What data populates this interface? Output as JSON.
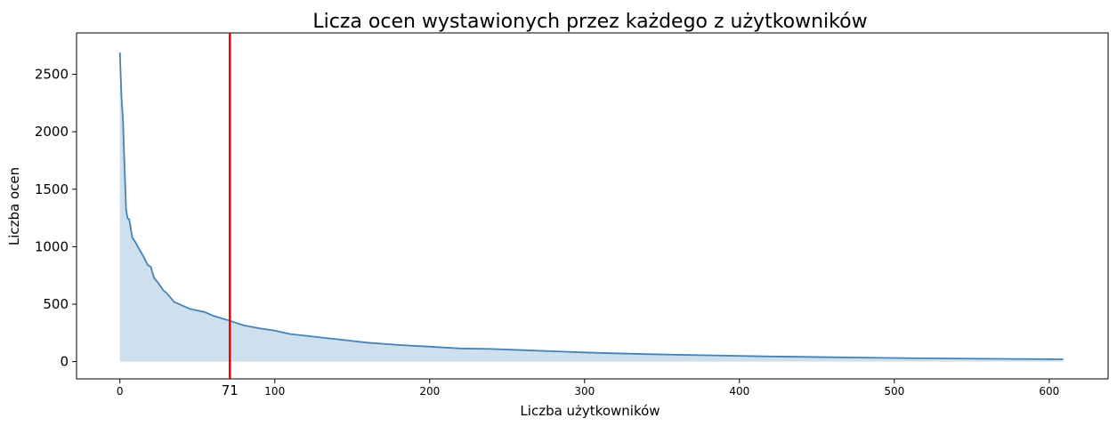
{
  "chart_data": {
    "type": "area",
    "title": "Licza ocen wystawionych przez każdego z użytkowników",
    "xlabel": "Liczba użytkowników",
    "ylabel": "Liczba ocen",
    "xlim": [
      -28,
      638
    ],
    "ylim": [
      -150,
      2860
    ],
    "xticks": [
      0,
      100,
      200,
      300,
      400,
      500,
      600
    ],
    "yticks": [
      0,
      500,
      1000,
      1500,
      2000,
      2500
    ],
    "grid": false,
    "colors": {
      "line": "#4682b4",
      "fill": "#c6dbeb",
      "marker": "#ee0000"
    },
    "vertical_marker": {
      "x": 71,
      "label": "71"
    },
    "series": [
      {
        "x": [
          0,
          1,
          2,
          3,
          4,
          5,
          6,
          8,
          10,
          12,
          15,
          18,
          20,
          22,
          25,
          28,
          30,
          35,
          40,
          45,
          50,
          55,
          60,
          65,
          71,
          80,
          90,
          100,
          110,
          120,
          130,
          140,
          150,
          160,
          180,
          200,
          220,
          240,
          260,
          280,
          300,
          320,
          340,
          360,
          380,
          400,
          420,
          440,
          460,
          480,
          500,
          520,
          540,
          560,
          580,
          600,
          609
        ],
        "y": [
          2690,
          2300,
          2100,
          1700,
          1320,
          1245,
          1240,
          1080,
          1040,
          990,
          920,
          840,
          825,
          730,
          680,
          620,
          600,
          520,
          490,
          460,
          445,
          430,
          400,
          380,
          355,
          315,
          290,
          270,
          240,
          225,
          210,
          195,
          180,
          165,
          145,
          130,
          115,
          110,
          100,
          90,
          80,
          72,
          65,
          60,
          55,
          50,
          45,
          42,
          38,
          35,
          32,
          29,
          27,
          25,
          23,
          21,
          20
        ]
      }
    ]
  }
}
